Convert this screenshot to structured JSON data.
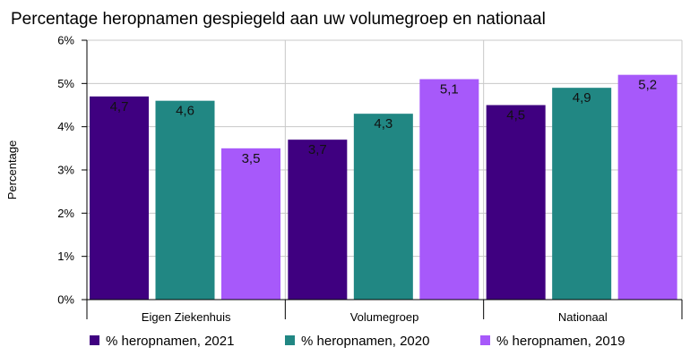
{
  "chart_data": {
    "type": "bar",
    "title": "Percentage heropnamen gespiegeld aan uw volumegroep en nationaal",
    "ylabel": "Percentage",
    "xlabel": "",
    "categories": [
      "Eigen Ziekenhuis",
      "Volumegroep",
      "Nationaal"
    ],
    "ylim": [
      0,
      6
    ],
    "yticks": [
      "0%",
      "1%",
      "2%",
      "3%",
      "4%",
      "5%",
      "6%"
    ],
    "grid": true,
    "legend_position": "bottom",
    "series": [
      {
        "name": "% heropnamen, 2021",
        "color": "#3f0080",
        "values": [
          4.7,
          3.7,
          4.5
        ],
        "labels": [
          "4,7",
          "3,7",
          "4,5"
        ]
      },
      {
        "name": "% heropnamen, 2020",
        "color": "#218783",
        "values": [
          4.6,
          4.3,
          4.9
        ],
        "labels": [
          "4,6",
          "4,3",
          "4,9"
        ]
      },
      {
        "name": "% heropnamen, 2019",
        "color": "#a759fa",
        "values": [
          3.5,
          5.1,
          5.2
        ],
        "labels": [
          "3,5",
          "5,1",
          "5,2"
        ]
      }
    ]
  }
}
